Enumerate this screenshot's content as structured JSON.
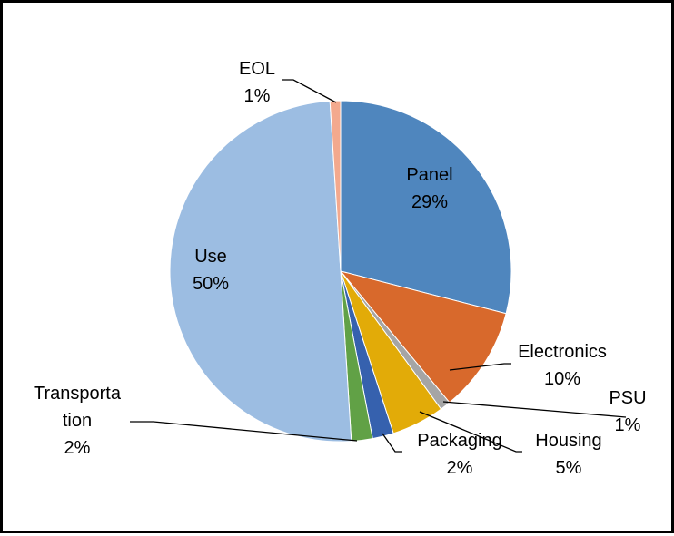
{
  "chart_data": {
    "type": "pie",
    "title": "",
    "start_angle_deg": 0,
    "direction": "clockwise",
    "slices": [
      {
        "name": "Panel",
        "value": 29,
        "label": "29%",
        "color": "#4f86be"
      },
      {
        "name": "Electronics",
        "value": 10,
        "label": "10%",
        "color": "#d8692c"
      },
      {
        "name": "PSU",
        "value": 1,
        "label": "1%",
        "color": "#a5a5a5"
      },
      {
        "name": "Housing",
        "value": 5,
        "label": "5%",
        "color": "#e2ab08"
      },
      {
        "name": "Packaging",
        "value": 2,
        "label": "2%",
        "color": "#3661ae"
      },
      {
        "name": "Transportation",
        "value": 2,
        "label": "2%",
        "color": "#61a146"
      },
      {
        "name": "Use",
        "value": 50,
        "label": "50%",
        "color": "#9cbde2"
      },
      {
        "name": "EOL",
        "value": 1,
        "label": "1%",
        "color": "#f3a98e"
      }
    ],
    "label_lines": {
      "Panel": [
        "Panel"
      ],
      "Electronics": [
        "Electronics"
      ],
      "PSU": [
        "PSU"
      ],
      "Housing": [
        "Housing"
      ],
      "Packaging": [
        "Packaging"
      ],
      "Transportation": [
        "Transporta",
        "tion"
      ],
      "Use": [
        "Use"
      ],
      "EOL": [
        "EOL"
      ]
    },
    "legend": "none"
  }
}
